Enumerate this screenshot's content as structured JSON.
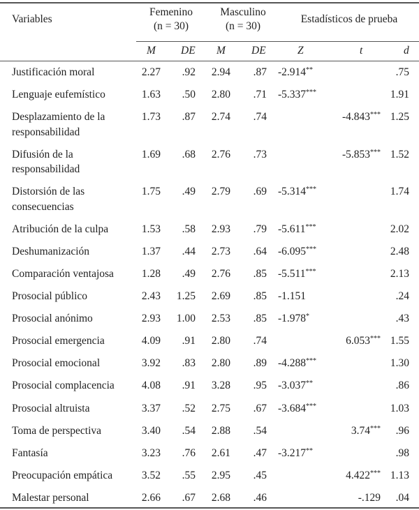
{
  "header": {
    "variables": "Variables",
    "femenino": "Femenino",
    "femenino_n": "(n = 30)",
    "masculino": "Masculino",
    "masculino_n": "(n = 30)",
    "estadisticos": "Estadísticos de prueba",
    "sub": {
      "m1": "M",
      "de1": "DE",
      "m2": "M",
      "de2": "DE",
      "z": "Z",
      "t": "t",
      "d": "d"
    }
  },
  "rows": [
    {
      "variable": "Justificación moral",
      "f_m": "2.27",
      "f_de": ".92",
      "m_m": "2.94",
      "m_de": ".87",
      "z": "-2.914",
      "z_sig": "**",
      "t": "",
      "t_sig": "",
      "d": ".75"
    },
    {
      "variable": "Lenguaje eufemístico",
      "f_m": "1.63",
      "f_de": ".50",
      "m_m": "2.80",
      "m_de": ".71",
      "z": "-5.337",
      "z_sig": "***",
      "t": "",
      "t_sig": "",
      "d": "1.91"
    },
    {
      "variable": "Desplazamiento de la responsabilidad",
      "f_m": "1.73",
      "f_de": ".87",
      "m_m": "2.74",
      "m_de": ".74",
      "z": "",
      "z_sig": "",
      "t": "-4.843",
      "t_sig": "***",
      "d": "1.25"
    },
    {
      "variable": "Difusión de la responsabilidad",
      "f_m": "1.69",
      "f_de": ".68",
      "m_m": "2.76",
      "m_de": ".73",
      "z": "",
      "z_sig": "",
      "t": "-5.853",
      "t_sig": "***",
      "d": "1.52"
    },
    {
      "variable": "Distorsión de las consecuencias",
      "f_m": "1.75",
      "f_de": ".49",
      "m_m": "2.79",
      "m_de": ".69",
      "z": "-5.314",
      "z_sig": "***",
      "t": "",
      "t_sig": "",
      "d": "1.74"
    },
    {
      "variable": "Atribución de la culpa",
      "f_m": "1.53",
      "f_de": ".58",
      "m_m": "2.93",
      "m_de": ".79",
      "z": "-5.611",
      "z_sig": "***",
      "t": "",
      "t_sig": "",
      "d": "2.02"
    },
    {
      "variable": "Deshumanización",
      "f_m": "1.37",
      "f_de": ".44",
      "m_m": "2.73",
      "m_de": ".64",
      "z": "-6.095",
      "z_sig": "***",
      "t": "",
      "t_sig": "",
      "d": "2.48"
    },
    {
      "variable": "Comparación ventajosa",
      "f_m": "1.28",
      "f_de": ".49",
      "m_m": "2.76",
      "m_de": ".85",
      "z": "-5.511",
      "z_sig": "***",
      "t": "",
      "t_sig": "",
      "d": "2.13"
    },
    {
      "variable": "Prosocial público",
      "f_m": "2.43",
      "f_de": "1.25",
      "m_m": "2.69",
      "m_de": ".85",
      "z": " -1.151",
      "z_sig": "",
      "t": "",
      "t_sig": "",
      "d": ".24"
    },
    {
      "variable": "Prosocial anónimo",
      "f_m": "2.93",
      "f_de": "1.00",
      "m_m": "2.53",
      "m_de": ".85",
      "z": " -1.978",
      "z_sig": "*",
      "t": "",
      "t_sig": "",
      "d": ".43"
    },
    {
      "variable": "Prosocial emergencia",
      "f_m": "4.09",
      "f_de": ".91",
      "m_m": "2.80",
      "m_de": ".74",
      "z": "",
      "z_sig": "",
      "t": "6.053",
      "t_sig": "***",
      "d": "1.55"
    },
    {
      "variable": "Prosocial emocional",
      "f_m": "3.92",
      "f_de": ".83",
      "m_m": "2.80",
      "m_de": ".89",
      "z": "-4.288",
      "z_sig": "***",
      "t": "",
      "t_sig": "",
      "d": "1.30"
    },
    {
      "variable": "Prosocial complacencia",
      "f_m": "4.08",
      "f_de": ".91",
      "m_m": "3.28",
      "m_de": ".95",
      "z": "-3.037",
      "z_sig": "**",
      "t": "",
      "t_sig": "",
      "d": ".86"
    },
    {
      "variable": "Prosocial altruista",
      "f_m": "3.37",
      "f_de": ".52",
      "m_m": "2.75",
      "m_de": ".67",
      "z": "-3.684",
      "z_sig": "***",
      "t": "",
      "t_sig": "",
      "d": "1.03"
    },
    {
      "variable": "Toma de perspectiva",
      "f_m": "3.40",
      "f_de": ".54",
      "m_m": "2.88",
      "m_de": ".54",
      "z": "",
      "z_sig": "",
      "t": "3.74",
      "t_sig": "***",
      "d": ".96"
    },
    {
      "variable": "Fantasía",
      "f_m": "3.23",
      "f_de": ".76",
      "m_m": "2.61",
      "m_de": ".47",
      "z": "-3.217",
      "z_sig": "**",
      "t": "",
      "t_sig": "",
      "d": ".98"
    },
    {
      "variable": "Preocupación empática",
      "f_m": "3.52",
      "f_de": ".55",
      "m_m": "2.95",
      "m_de": ".45",
      "z": "",
      "z_sig": "",
      "t": "4.422",
      "t_sig": "***",
      "d": "1.13"
    },
    {
      "variable": "Malestar personal",
      "f_m": "2.66",
      "f_de": ".67",
      "m_m": "2.68",
      "m_de": ".46",
      "z": "",
      "z_sig": "",
      "t": "-.129",
      "t_sig": "",
      "d": ".04"
    }
  ]
}
